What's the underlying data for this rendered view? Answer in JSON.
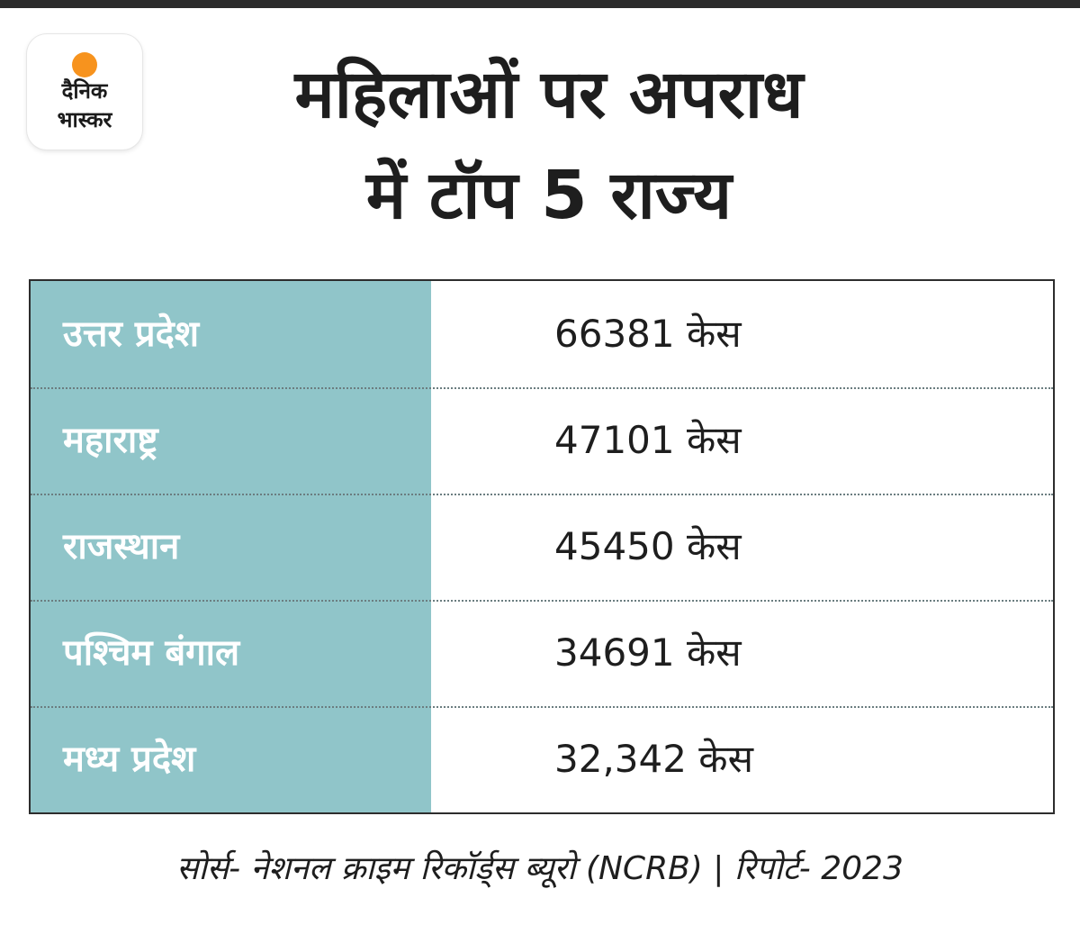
{
  "logo": {
    "line1": "दैनिक",
    "line2": "भास्कर",
    "sun_color": "#f7931e"
  },
  "title": {
    "line1": "महिलाओं पर अपराध",
    "line2": "में टॉप 5 राज्य"
  },
  "colors": {
    "state_column_bg": "#90c5c9",
    "text": "#1e1e1e"
  },
  "chart_data": {
    "type": "table",
    "title": "महिलाओं पर अपराध में टॉप 5 राज्य",
    "columns": [
      "",
      ""
    ],
    "rows": [
      {
        "state": "उत्तर प्रदेश",
        "cases": "66381 केस",
        "value": 66381
      },
      {
        "state": "महाराष्ट्र",
        "cases": "47101 केस",
        "value": 47101
      },
      {
        "state": "राजस्थान",
        "cases": "45450 केस",
        "value": 45450
      },
      {
        "state": "पश्चिम बंगाल",
        "cases": "34691 केस",
        "value": 34691
      },
      {
        "state": "मध्य प्रदेश",
        "cases": "32,342 केस",
        "value": 32342
      }
    ]
  },
  "source": "सोर्स- नेशनल क्राइम रिकॉर्ड्स ब्यूरो (NCRB) |  रिपोर्ट- 2023"
}
